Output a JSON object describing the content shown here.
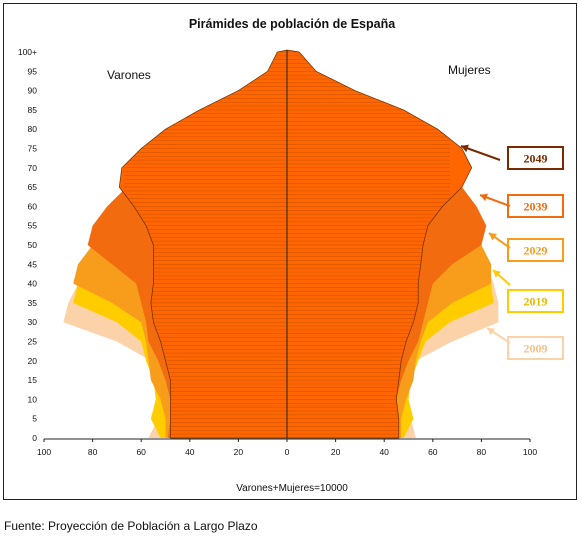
{
  "chart_data": {
    "type": "area",
    "title": "Pirámides de población de España",
    "left_label": "Varones",
    "right_label": "Mujeres",
    "xlabel": "Varones+Mujeres=10000",
    "x_ticks": [
      "100",
      "80",
      "60",
      "40",
      "20",
      "0",
      "20",
      "40",
      "60",
      "80",
      "100"
    ],
    "y_ticks": [
      "0",
      "5",
      "10",
      "15",
      "20",
      "25",
      "30",
      "35",
      "40",
      "45",
      "50",
      "55",
      "60",
      "65",
      "70",
      "75",
      "80",
      "85",
      "90",
      "95",
      "100+"
    ],
    "ages": [
      0,
      5,
      10,
      15,
      20,
      25,
      30,
      35,
      40,
      45,
      50,
      55,
      60,
      65,
      70,
      75,
      80,
      85,
      90,
      95,
      100
    ],
    "xlim": [
      -100,
      100
    ],
    "series": [
      {
        "name": "2009",
        "color": "#fcd2a8",
        "male": [
          -57,
          -53,
          -52,
          -53,
          -56,
          -70,
          -92,
          -90,
          -86,
          -82,
          -76,
          -72,
          -64,
          -57,
          -50,
          -42,
          -33,
          -24,
          -14,
          -7,
          -3
        ],
        "female": [
          53,
          51,
          49,
          50,
          53,
          68,
          87,
          87,
          85,
          82,
          78,
          74,
          68,
          62,
          57,
          50,
          42,
          33,
          20,
          10,
          3
        ]
      },
      {
        "name": "2019",
        "color": "#ffcc00",
        "male": [
          -52,
          -56,
          -54,
          -55,
          -58,
          -60,
          -70,
          -88,
          -86,
          -82,
          -77,
          -72,
          -64,
          -57,
          -50,
          -42,
          -33,
          -24,
          -14,
          -7,
          -3
        ],
        "female": [
          48,
          52,
          50,
          51,
          54,
          57,
          67,
          85,
          84,
          82,
          78,
          74,
          68,
          62,
          57,
          50,
          42,
          33,
          20,
          10,
          3
        ]
      },
      {
        "name": "2029",
        "color": "#f89c1c",
        "male": [
          -50,
          -50,
          -52,
          -56,
          -57,
          -58,
          -60,
          -72,
          -88,
          -86,
          -80,
          -74,
          -66,
          -58,
          -51,
          -43,
          -34,
          -24,
          -14,
          -7,
          -3
        ],
        "female": [
          47,
          47,
          49,
          52,
          53,
          55,
          58,
          68,
          84,
          84,
          80,
          75,
          69,
          63,
          58,
          51,
          43,
          33,
          20,
          10,
          3
        ]
      },
      {
        "name": "2039",
        "color": "#f26b0f",
        "male": [
          -49,
          -48,
          -48,
          -50,
          -53,
          -57,
          -58,
          -60,
          -62,
          -72,
          -82,
          -80,
          -74,
          -66,
          -57,
          -47,
          -37,
          -26,
          -15,
          -8,
          -3
        ],
        "female": [
          46,
          45,
          45,
          47,
          50,
          54,
          56,
          58,
          60,
          68,
          80,
          82,
          78,
          72,
          65,
          57,
          47,
          35,
          21,
          11,
          3
        ]
      },
      {
        "name": "2049",
        "color": "#ff6600",
        "male": [
          -48,
          -48,
          -48,
          -48,
          -50,
          -52,
          -55,
          -56,
          -55,
          -55,
          -55,
          -58,
          -63,
          -69,
          -68,
          -60,
          -50,
          -36,
          -20,
          -8,
          -4
        ],
        "female": [
          46,
          46,
          45,
          46,
          47,
          49,
          52,
          54,
          54,
          55,
          56,
          58,
          64,
          72,
          76,
          72,
          62,
          48,
          28,
          12,
          5
        ]
      }
    ],
    "legend": [
      "2049",
      "2039",
      "2029",
      "2019",
      "2009"
    ],
    "grid": false
  },
  "source": "Fuente: Proyección de Población a Largo Plazo"
}
